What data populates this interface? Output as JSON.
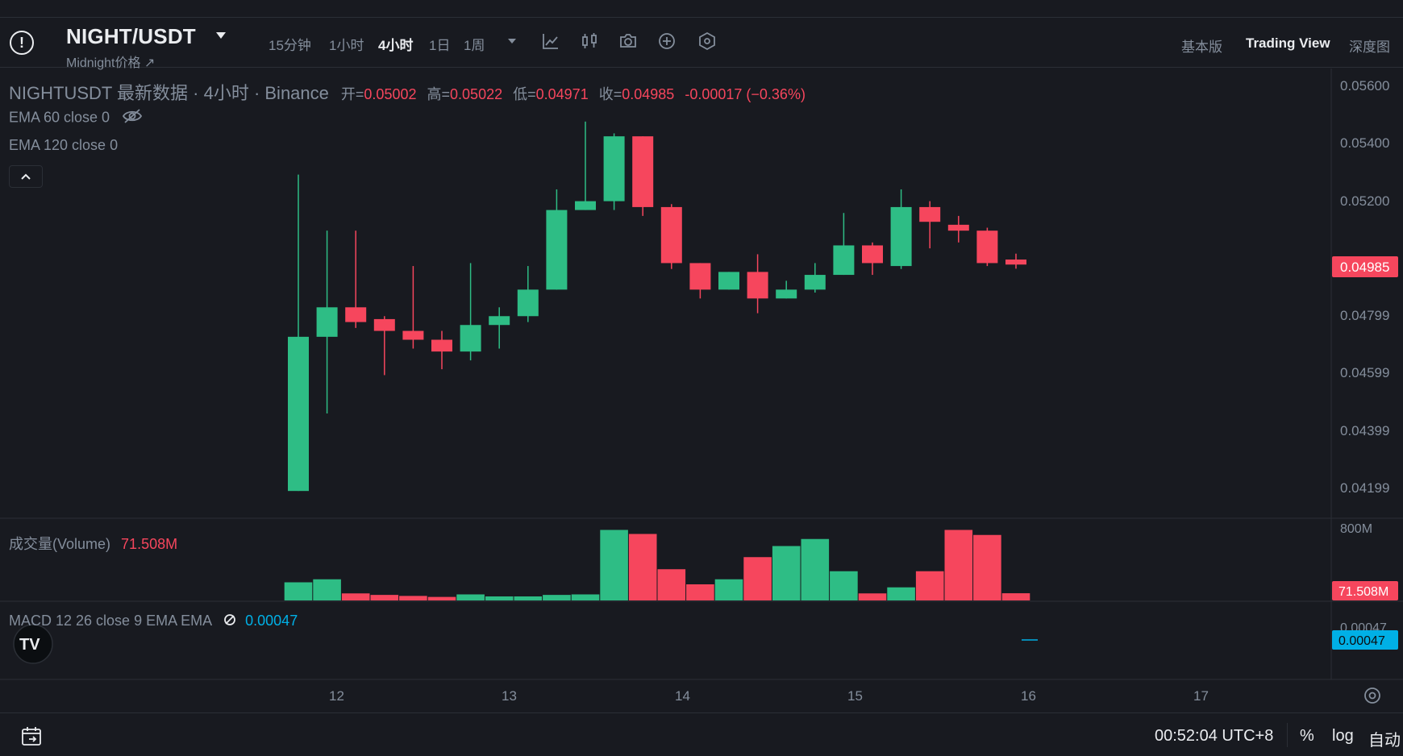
{
  "header": {
    "symbol": "NIGHT/USDT",
    "subtitle": "Midnight价格 ↗",
    "intervals": [
      "15分钟",
      "1小时",
      "4小时",
      "1日",
      "1周"
    ],
    "active_interval": "4小时",
    "views": [
      "基本版",
      "Trading View",
      "深度图"
    ],
    "active_view": "Trading View"
  },
  "legend": {
    "title": "NIGHTUSDT 最新数据 · 4小时 · Binance",
    "open_label": "开=",
    "open": "0.05002",
    "high_label": "高=",
    "high": "0.05022",
    "low_label": "低=",
    "low": "0.04971",
    "close_label": "收=",
    "close": "0.04985",
    "change": "-0.00017 (−0.36%)",
    "ema60": "EMA 60 close 0",
    "ema120": "EMA 120 close 0"
  },
  "volume_legend": {
    "label": "成交量(Volume)",
    "value": "71.508M"
  },
  "macd_legend": {
    "label": "MACD 12 26 close 9 EMA EMA",
    "value": "0.00047"
  },
  "price_axis": {
    "ticks": [
      "0.05600",
      "0.05400",
      "0.05200",
      "0.04799",
      "0.04599",
      "0.04399",
      "0.04199"
    ],
    "current_price": "0.04985",
    "volume_tick": "800M",
    "volume_current": "71.508M",
    "macd_tick": "0.00047",
    "macd_current": "0.00047"
  },
  "time_axis": {
    "labels": [
      "12",
      "13",
      "14",
      "15",
      "16",
      "17"
    ]
  },
  "bottom": {
    "clock": "00:52:04 UTC+8",
    "percent": "%",
    "log": "log",
    "auto": "自动"
  },
  "colors": {
    "up": "#2ebd85",
    "down": "#f6465d",
    "background": "#181a20",
    "macd": "#00b0e6",
    "text_muted": "#848e9c"
  },
  "chart_data": {
    "type": "candlestick",
    "price_ylim": [
      0.0413,
      0.0565
    ],
    "volume_max_millions": 800,
    "candles": [
      {
        "o": 0.04217,
        "h": 0.0529,
        "l": 0.04217,
        "c": 0.0474,
        "vol_m": 180
      },
      {
        "o": 0.0474,
        "h": 0.051,
        "l": 0.0448,
        "c": 0.0484,
        "vol_m": 210
      },
      {
        "o": 0.0484,
        "h": 0.051,
        "l": 0.0477,
        "c": 0.0479,
        "vol_m": 70
      },
      {
        "o": 0.048,
        "h": 0.0481,
        "l": 0.0461,
        "c": 0.0476,
        "vol_m": 55
      },
      {
        "o": 0.0476,
        "h": 0.0498,
        "l": 0.047,
        "c": 0.0473,
        "vol_m": 45
      },
      {
        "o": 0.0473,
        "h": 0.0476,
        "l": 0.0463,
        "c": 0.0469,
        "vol_m": 35
      },
      {
        "o": 0.0469,
        "h": 0.0499,
        "l": 0.0466,
        "c": 0.0478,
        "vol_m": 60
      },
      {
        "o": 0.0478,
        "h": 0.0484,
        "l": 0.047,
        "c": 0.0481,
        "vol_m": 40
      },
      {
        "o": 0.0481,
        "h": 0.0498,
        "l": 0.0479,
        "c": 0.049,
        "vol_m": 40
      },
      {
        "o": 0.049,
        "h": 0.0524,
        "l": 0.049,
        "c": 0.0517,
        "vol_m": 55
      },
      {
        "o": 0.0517,
        "h": 0.0547,
        "l": 0.0517,
        "c": 0.052,
        "vol_m": 60
      },
      {
        "o": 0.052,
        "h": 0.0543,
        "l": 0.0517,
        "c": 0.0542,
        "vol_m": 700
      },
      {
        "o": 0.0542,
        "h": 0.0542,
        "l": 0.0515,
        "c": 0.0518,
        "vol_m": 660
      },
      {
        "o": 0.0518,
        "h": 0.0519,
        "l": 0.0497,
        "c": 0.0499,
        "vol_m": 310
      },
      {
        "o": 0.0499,
        "h": 0.0499,
        "l": 0.0487,
        "c": 0.049,
        "vol_m": 160
      },
      {
        "o": 0.049,
        "h": 0.0496,
        "l": 0.049,
        "c": 0.0496,
        "vol_m": 210
      },
      {
        "o": 0.0496,
        "h": 0.0502,
        "l": 0.0482,
        "c": 0.0487,
        "vol_m": 430
      },
      {
        "o": 0.0487,
        "h": 0.0493,
        "l": 0.0487,
        "c": 0.049,
        "vol_m": 540
      },
      {
        "o": 0.049,
        "h": 0.0499,
        "l": 0.0489,
        "c": 0.0495,
        "vol_m": 610
      },
      {
        "o": 0.0495,
        "h": 0.0516,
        "l": 0.0495,
        "c": 0.0505,
        "vol_m": 290
      },
      {
        "o": 0.0505,
        "h": 0.0506,
        "l": 0.0495,
        "c": 0.0499,
        "vol_m": 70
      },
      {
        "o": 0.0498,
        "h": 0.0524,
        "l": 0.0497,
        "c": 0.0518,
        "vol_m": 130
      },
      {
        "o": 0.0518,
        "h": 0.052,
        "l": 0.0504,
        "c": 0.0513,
        "vol_m": 290
      },
      {
        "o": 0.0512,
        "h": 0.0515,
        "l": 0.0506,
        "c": 0.051,
        "vol_m": 700
      },
      {
        "o": 0.051,
        "h": 0.0511,
        "l": 0.0498,
        "c": 0.0499,
        "vol_m": 650
      },
      {
        "o": 0.05002,
        "h": 0.05022,
        "l": 0.04971,
        "c": 0.04985,
        "vol_m": 71.508
      }
    ]
  }
}
